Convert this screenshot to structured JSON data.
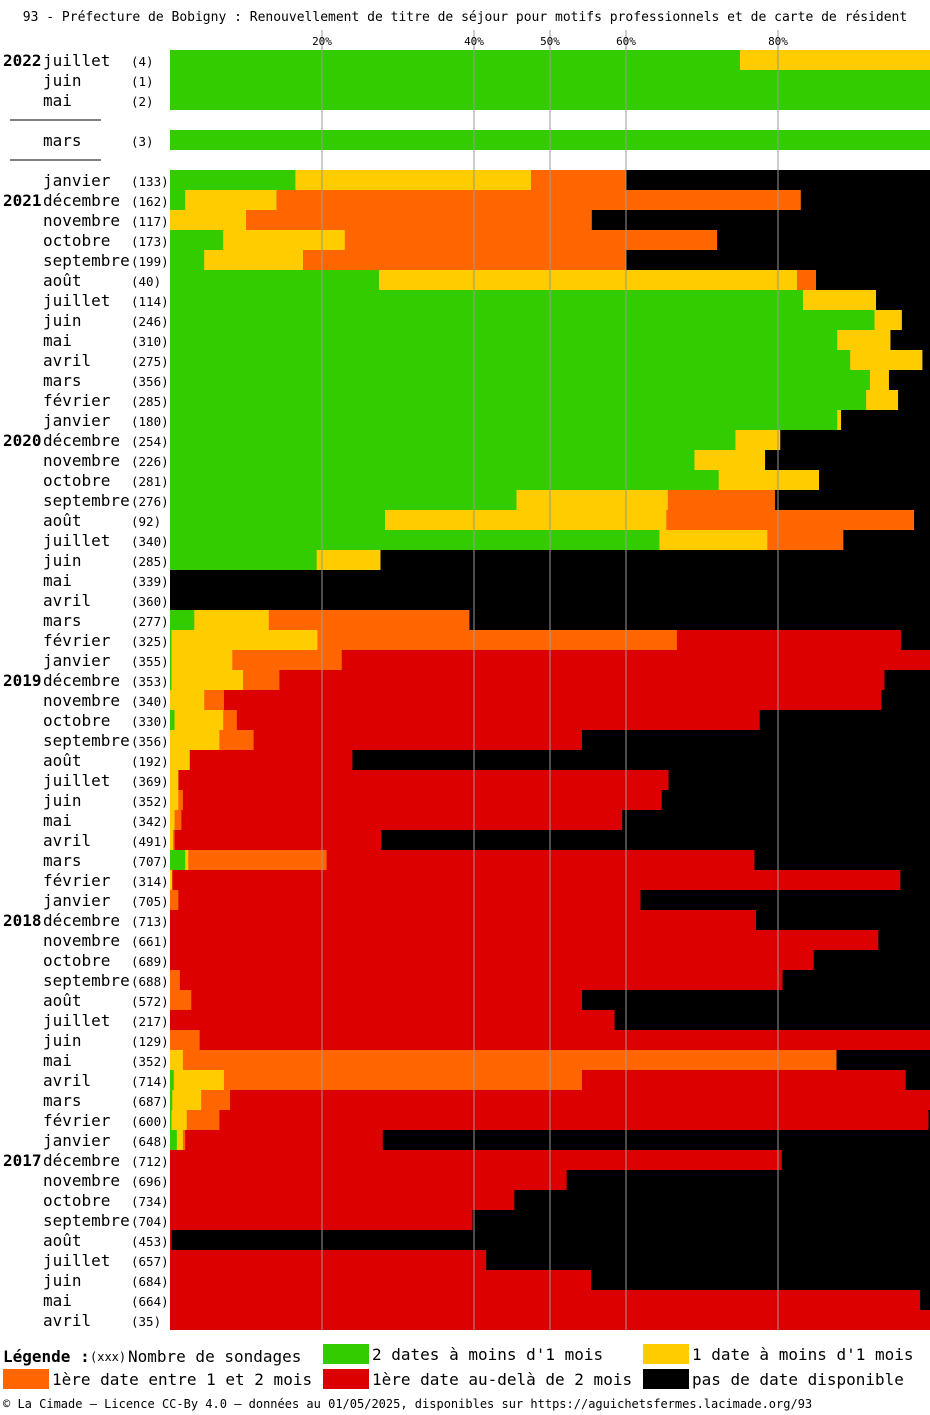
{
  "chart_data": {
    "type": "bar",
    "orientation": "horizontal",
    "stacked": true,
    "title": "93 - Préfecture de Bobigny : Renouvellement de titre de séjour pour motifs professionnels et de carte de résident",
    "xlim": [
      0,
      100
    ],
    "x_ticks": [
      20,
      40,
      50,
      60,
      80
    ],
    "x_tick_labels": [
      "20%",
      "40%",
      "50%",
      "60%",
      "80%"
    ],
    "grid": true,
    "legend_placement": "bottom",
    "series_order": [
      "green",
      "yellow",
      "orange",
      "red",
      "black"
    ],
    "colors": {
      "green": "#33cc00",
      "yellow": "#ffcc00",
      "orange": "#ff6600",
      "red": "#dd0000",
      "black": "#000000",
      "grid": "#999999"
    },
    "rows": [
      {
        "year": "2022",
        "month": "juillet",
        "count": "(4)",
        "v": [
          75,
          25,
          0,
          0,
          0
        ]
      },
      {
        "month": "juin",
        "count": "(1)",
        "v": [
          100,
          0,
          0,
          0,
          0
        ]
      },
      {
        "month": "mai",
        "count": "(2)",
        "v": [
          100,
          0,
          0,
          0,
          0
        ]
      },
      {
        "separator": true
      },
      {
        "month": "mars",
        "count": "(3)",
        "v": [
          100,
          0,
          0,
          0,
          0
        ]
      },
      {
        "separator": true
      },
      {
        "month": "janvier",
        "count": "(133)",
        "v": [
          16.5,
          31,
          12.5,
          0,
          40
        ]
      },
      {
        "year": "2021",
        "month": "décembre",
        "count": "(162)",
        "v": [
          2,
          12,
          69,
          0,
          17
        ]
      },
      {
        "month": "novembre",
        "count": "(117)",
        "v": [
          0,
          10,
          45.5,
          0,
          44.5
        ]
      },
      {
        "month": "octobre",
        "count": "(173)",
        "v": [
          7,
          16,
          49,
          0,
          28
        ]
      },
      {
        "month": "septembre",
        "count": "(199)",
        "v": [
          4.5,
          13,
          42.5,
          0,
          40
        ]
      },
      {
        "month": "août",
        "count": "(40)",
        "v": [
          27.5,
          55,
          2.5,
          0,
          15
        ]
      },
      {
        "month": "juillet",
        "count": "(114)",
        "v": [
          83.3,
          9.6,
          0,
          0,
          7.1
        ]
      },
      {
        "month": "juin",
        "count": "(246)",
        "v": [
          92.7,
          3.6,
          0,
          0,
          3.7
        ]
      },
      {
        "month": "mai",
        "count": "(310)",
        "v": [
          87.8,
          7,
          0,
          0,
          5.2
        ]
      },
      {
        "month": "avril",
        "count": "(275)",
        "v": [
          89.5,
          9.5,
          0,
          0,
          1
        ]
      },
      {
        "month": "mars",
        "count": "(356)",
        "v": [
          92.1,
          2.5,
          0,
          0,
          5.4
        ]
      },
      {
        "month": "février",
        "count": "(285)",
        "v": [
          91.6,
          4.2,
          0,
          0,
          4.2
        ]
      },
      {
        "month": "janvier",
        "count": "(180)",
        "v": [
          87.8,
          0.5,
          0,
          0,
          11.7
        ]
      },
      {
        "year": "2020",
        "month": "décembre",
        "count": "(254)",
        "v": [
          74.4,
          5.9,
          0,
          0,
          19.7
        ]
      },
      {
        "month": "novembre",
        "count": "(226)",
        "v": [
          69,
          9.3,
          0,
          0,
          21.7
        ]
      },
      {
        "month": "octobre",
        "count": "(281)",
        "v": [
          72.2,
          13.2,
          0,
          0,
          14.6
        ]
      },
      {
        "month": "septembre",
        "count": "(276)",
        "v": [
          45.6,
          19.9,
          14.1,
          0,
          20.4
        ]
      },
      {
        "month": "août",
        "count": "(92)",
        "v": [
          28.3,
          37,
          32.6,
          0,
          2.1
        ]
      },
      {
        "month": "juillet",
        "count": "(340)",
        "v": [
          64.4,
          14.2,
          10,
          0,
          11.4
        ]
      },
      {
        "month": "juin",
        "count": "(285)",
        "v": [
          19.3,
          8.4,
          0,
          0,
          72.3
        ]
      },
      {
        "month": "mai",
        "count": "(339)",
        "v": [
          0,
          0,
          0,
          0,
          100
        ]
      },
      {
        "month": "avril",
        "count": "(360)",
        "v": [
          0,
          0,
          0,
          0,
          100
        ]
      },
      {
        "month": "mars",
        "count": "(277)",
        "v": [
          3.2,
          9.8,
          26.4,
          0,
          60.6
        ]
      },
      {
        "month": "février",
        "count": "(325)",
        "v": [
          0.2,
          19.2,
          47.3,
          29.5,
          3.8
        ]
      },
      {
        "month": "janvier",
        "count": "(355)",
        "v": [
          0.2,
          8,
          14.4,
          77.4,
          0
        ]
      },
      {
        "year": "2019",
        "month": "décembre",
        "count": "(353)",
        "v": [
          0.2,
          9.4,
          4.8,
          79.6,
          6
        ]
      },
      {
        "month": "novembre",
        "count": "(340)",
        "v": [
          0,
          4.5,
          2.6,
          86.5,
          6.4
        ]
      },
      {
        "month": "octobre",
        "count": "(330)",
        "v": [
          0.6,
          6.4,
          1.8,
          68.8,
          22.4
        ]
      },
      {
        "month": "septembre",
        "count": "(356)",
        "v": [
          0,
          6.5,
          4.5,
          43.2,
          45.8
        ]
      },
      {
        "month": "août",
        "count": "(192)",
        "v": [
          0,
          2.6,
          0,
          21.4,
          76
        ]
      },
      {
        "month": "juillet",
        "count": "(369)",
        "v": [
          0,
          1.1,
          0,
          64.5,
          34.4
        ]
      },
      {
        "month": "juin",
        "count": "(352)",
        "v": [
          0,
          1.1,
          0.6,
          63,
          35.3
        ]
      },
      {
        "month": "mai",
        "count": "(342)",
        "v": [
          0,
          0.6,
          0.9,
          58,
          40.5
        ]
      },
      {
        "month": "avril",
        "count": "(491)",
        "v": [
          0,
          0.4,
          0.2,
          27.2,
          72.2
        ]
      },
      {
        "month": "mars",
        "count": "(707)",
        "v": [
          2,
          0.4,
          18.2,
          56.3,
          23.1
        ]
      },
      {
        "month": "février",
        "count": "(314)",
        "v": [
          0,
          0.3,
          0,
          95.8,
          3.9
        ]
      },
      {
        "month": "janvier",
        "count": "(705)",
        "v": [
          0,
          0,
          1.1,
          60.8,
          38.1
        ]
      },
      {
        "year": "2018",
        "month": "décembre",
        "count": "(713)",
        "v": [
          0,
          0,
          0,
          77.1,
          22.9
        ]
      },
      {
        "month": "novembre",
        "count": "(661)",
        "v": [
          0,
          0,
          0,
          93.2,
          6.8
        ]
      },
      {
        "month": "octobre",
        "count": "(689)",
        "v": [
          0,
          0,
          0,
          84.7,
          15.3
        ]
      },
      {
        "month": "septembre",
        "count": "(688)",
        "v": [
          0,
          0,
          1.3,
          79.3,
          19.4
        ]
      },
      {
        "month": "août",
        "count": "(572)",
        "v": [
          0,
          0,
          2.8,
          51.4,
          45.8
        ]
      },
      {
        "month": "juillet",
        "count": "(217)",
        "v": [
          0,
          0,
          0,
          58.5,
          41.5
        ]
      },
      {
        "month": "juin",
        "count": "(129)",
        "v": [
          0,
          0,
          3.9,
          96.1,
          0
        ]
      },
      {
        "month": "mai",
        "count": "(352)",
        "v": [
          0,
          1.7,
          86,
          0,
          12.3
        ]
      },
      {
        "month": "avril",
        "count": "(714)",
        "v": [
          0.5,
          6.6,
          47.1,
          42.6,
          3.2
        ]
      },
      {
        "month": "mars",
        "count": "(687)",
        "v": [
          0.3,
          3.8,
          3.8,
          92.1,
          0
        ]
      },
      {
        "month": "février",
        "count": "(600)",
        "v": [
          0.2,
          2,
          4.3,
          93.3,
          0.2
        ]
      },
      {
        "month": "janvier",
        "count": "(648)",
        "v": [
          0.9,
          0.8,
          0.3,
          26,
          72
        ]
      },
      {
        "year": "2017",
        "month": "décembre",
        "count": "(712)",
        "v": [
          0,
          0,
          0,
          80.5,
          19.5
        ]
      },
      {
        "month": "novembre",
        "count": "(696)",
        "v": [
          0,
          0,
          0,
          52.2,
          47.8
        ]
      },
      {
        "month": "octobre",
        "count": "(734)",
        "v": [
          0,
          0,
          0,
          45.3,
          54.7
        ]
      },
      {
        "month": "septembre",
        "count": "(704)",
        "v": [
          0,
          0,
          0,
          39.8,
          60.2
        ]
      },
      {
        "month": "août",
        "count": "(453)",
        "v": [
          0,
          0,
          0,
          0.2,
          99.8
        ]
      },
      {
        "month": "juillet",
        "count": "(657)",
        "v": [
          0,
          0,
          0,
          41.6,
          58.4
        ]
      },
      {
        "month": "juin",
        "count": "(684)",
        "v": [
          0,
          0,
          0,
          55.4,
          44.6
        ]
      },
      {
        "month": "mai",
        "count": "(664)",
        "v": [
          0,
          0,
          0,
          98.7,
          1.3
        ]
      },
      {
        "month": "avril",
        "count": "(35)",
        "v": [
          0,
          0,
          0,
          100,
          0
        ]
      }
    ]
  },
  "legend": {
    "title": "Légende :",
    "count_marker": "(xxx)",
    "count_text": "Nombre de sondages",
    "items": [
      {
        "key": "green",
        "label": "2 dates à moins d'1 mois"
      },
      {
        "key": "yellow",
        "label": "1 date à moins d'1 mois"
      },
      {
        "key": "orange",
        "label": "1ère date entre 1 et 2 mois"
      },
      {
        "key": "red",
        "label": "1ère date au-delà de 2 mois"
      },
      {
        "key": "black",
        "label": "pas de date disponible"
      }
    ]
  },
  "footer": "© La Cimade — Licence CC-By 4.0 — données au 01/05/2025, disponibles sur https://aguichetsfermes.lacimade.org/93"
}
